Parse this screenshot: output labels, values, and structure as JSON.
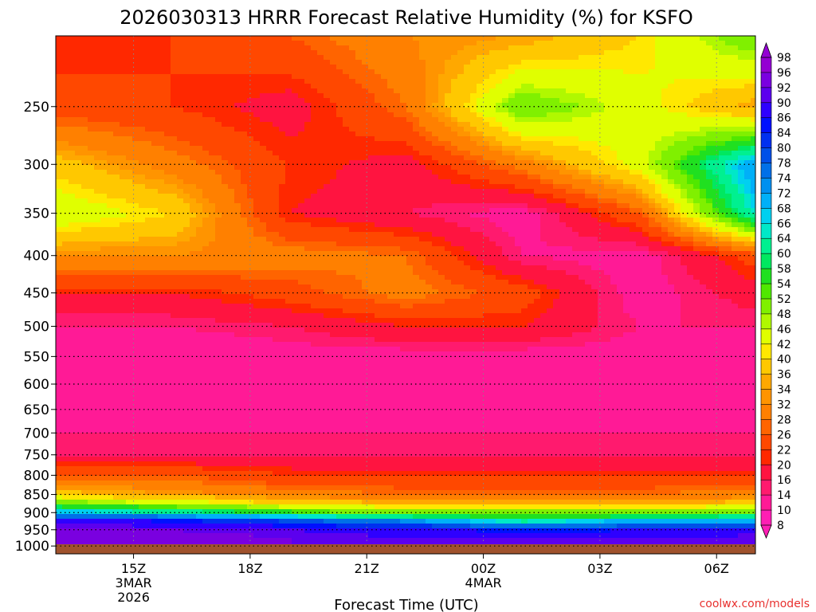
{
  "chart_data": {
    "type": "heatmap",
    "title": "2026030313 HRRR Forecast Relative Humidity (%) for KSFO",
    "xlabel": "Forecast Time (UTC)",
    "ylabel": "",
    "x_ticks": [
      {
        "hour": 2,
        "label": "15Z",
        "sub1": "3MAR",
        "sub2": "2026"
      },
      {
        "hour": 5,
        "label": "18Z",
        "sub1": "",
        "sub2": ""
      },
      {
        "hour": 8,
        "label": "21Z",
        "sub1": "",
        "sub2": ""
      },
      {
        "hour": 11,
        "label": "00Z",
        "sub1": "4MAR",
        "sub2": ""
      },
      {
        "hour": 14,
        "label": "03Z",
        "sub1": "",
        "sub2": ""
      },
      {
        "hour": 17,
        "label": "06Z",
        "sub1": "",
        "sub2": ""
      }
    ],
    "y_ticks": [
      250,
      300,
      350,
      400,
      450,
      500,
      550,
      600,
      650,
      700,
      750,
      800,
      850,
      900,
      950,
      1000
    ],
    "x_range_hours": [
      0.0,
      18.0
    ],
    "y_range_hPa": [
      200,
      1025
    ],
    "y_scale": "log",
    "grid": true,
    "colorbar": {
      "labels": [
        98,
        96,
        92,
        90,
        86,
        84,
        80,
        78,
        74,
        72,
        68,
        66,
        64,
        60,
        58,
        54,
        52,
        48,
        46,
        42,
        40,
        36,
        34,
        32,
        28,
        26,
        22,
        20,
        16,
        14,
        10,
        8
      ],
      "colors": [
        "#9400d3",
        "#7a00e0",
        "#5c00ee",
        "#2e00ff",
        "#0010ff",
        "#0030f0",
        "#0050e8",
        "#0070e8",
        "#0090f0",
        "#00b0f8",
        "#00d0f0",
        "#00e8c8",
        "#00f090",
        "#00e860",
        "#20e020",
        "#50e800",
        "#80f000",
        "#b0f800",
        "#e0ff00",
        "#ffe800",
        "#ffc800",
        "#ffa800",
        "#ff9400",
        "#ff8000",
        "#ff6400",
        "#ff4800",
        "#ff2800",
        "#ff1440",
        "#ff1a6e",
        "#ff1a96",
        "#ff1eb4"
      ],
      "placement": "right"
    },
    "rh_profiles": [
      {
        "hour": 0,
        "levels": [
          200,
          250,
          300,
          350,
          400,
          450,
          500,
          550,
          600,
          650,
          700,
          750,
          800,
          850,
          875,
          900,
          925,
          950,
          975,
          1000,
          1013
        ],
        "rh": [
          20,
          24,
          38,
          46,
          32,
          20,
          14,
          10,
          12,
          12,
          14,
          16,
          26,
          38,
          52,
          70,
          88,
          94,
          96,
          96,
          92
        ]
      },
      {
        "hour": 3,
        "levels": [
          200,
          250,
          300,
          350,
          400,
          450,
          500,
          550,
          600,
          650,
          700,
          750,
          800,
          850,
          875,
          900,
          925,
          950,
          975,
          1000,
          1013
        ],
        "rh": [
          22,
          22,
          30,
          40,
          32,
          20,
          14,
          10,
          12,
          12,
          14,
          16,
          26,
          34,
          46,
          64,
          86,
          92,
          94,
          94,
          90
        ]
      },
      {
        "hour": 6,
        "levels": [
          200,
          250,
          300,
          350,
          400,
          450,
          500,
          550,
          600,
          650,
          700,
          750,
          800,
          850,
          875,
          900,
          925,
          950,
          975,
          1000,
          1013
        ],
        "rh": [
          26,
          18,
          22,
          20,
          30,
          24,
          16,
          12,
          12,
          12,
          14,
          16,
          22,
          30,
          40,
          56,
          80,
          90,
          92,
          92,
          90
        ]
      },
      {
        "hour": 9,
        "levels": [
          200,
          250,
          300,
          350,
          400,
          450,
          500,
          550,
          600,
          650,
          700,
          750,
          800,
          850,
          875,
          900,
          925,
          950,
          975,
          1000,
          1013
        ],
        "rh": [
          32,
          28,
          18,
          16,
          28,
          30,
          20,
          12,
          12,
          12,
          14,
          16,
          22,
          28,
          36,
          50,
          74,
          88,
          90,
          90,
          88
        ]
      },
      {
        "hour": 12,
        "levels": [
          200,
          250,
          300,
          350,
          400,
          450,
          500,
          550,
          600,
          650,
          700,
          750,
          800,
          850,
          875,
          900,
          925,
          950,
          975,
          1000,
          1013
        ],
        "rh": [
          34,
          52,
          30,
          12,
          14,
          24,
          20,
          12,
          10,
          12,
          14,
          16,
          22,
          28,
          36,
          50,
          64,
          84,
          90,
          90,
          88
        ]
      },
      {
        "hour": 15,
        "levels": [
          200,
          250,
          300,
          350,
          400,
          450,
          500,
          550,
          600,
          650,
          700,
          750,
          800,
          850,
          875,
          900,
          925,
          950,
          975,
          1000,
          1013
        ],
        "rh": [
          40,
          44,
          44,
          26,
          12,
          12,
          14,
          12,
          10,
          12,
          14,
          16,
          22,
          28,
          36,
          50,
          70,
          86,
          90,
          90,
          88
        ]
      },
      {
        "hour": 18,
        "levels": [
          200,
          250,
          300,
          350,
          400,
          450,
          500,
          550,
          600,
          650,
          700,
          750,
          800,
          850,
          875,
          900,
          925,
          950,
          975,
          1000,
          1013
        ],
        "rh": [
          52,
          34,
          72,
          66,
          24,
          18,
          14,
          12,
          10,
          12,
          14,
          16,
          22,
          30,
          38,
          52,
          72,
          86,
          92,
          92,
          90
        ]
      }
    ],
    "surface_band_color": "#a0522d"
  },
  "credit": "coolwx.com/models"
}
